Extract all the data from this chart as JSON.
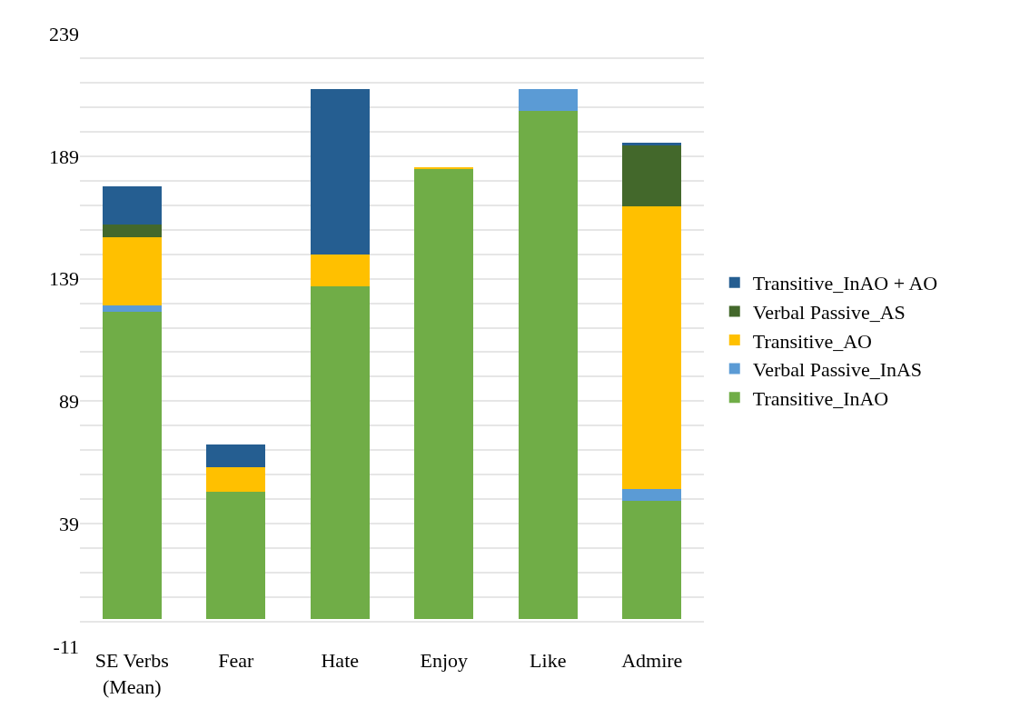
{
  "chart_data": {
    "type": "bar",
    "stacked": true,
    "categories": [
      "SE Verbs (Mean)",
      "Fear",
      "Hate",
      "Enjoy",
      "Like",
      "Admire"
    ],
    "series": [
      {
        "name": "Transitive_InAO",
        "color": "#70ad47",
        "values": [
          125.4,
          52.1,
          135.8,
          183.7,
          207.4,
          48.2
        ]
      },
      {
        "name": "Verbal Passive_InAS",
        "color": "#5b9bd5",
        "values": [
          2.7,
          null,
          null,
          null,
          9.1,
          4.8
        ]
      },
      {
        "name": "Transitive_AO",
        "color": "#ffc000",
        "values": [
          28,
          9.9,
          13,
          0.9,
          null,
          115.7
        ]
      },
      {
        "name": "Verbal Passive_AS",
        "color": "#43682b",
        "values": [
          5.1,
          null,
          null,
          null,
          null,
          24.8
        ]
      },
      {
        "name": "Transitive_InAO + AO",
        "color": "#255e91",
        "values": [
          15.4,
          9.2,
          67.6,
          null,
          null,
          1
        ]
      }
    ],
    "ylim": [
      -11,
      239
    ],
    "yticks": [
      -11,
      {
        "value": -1,
        "label": null
      },
      {
        "value": 9,
        "label": null
      },
      {
        "value": 19,
        "label": null
      },
      {
        "value": 29,
        "label": null
      },
      39,
      {
        "value": 49,
        "label": null
      },
      {
        "value": 59,
        "label": null
      },
      {
        "value": 69,
        "label": null
      },
      {
        "value": 79,
        "label": null
      },
      89,
      {
        "value": 99,
        "label": null
      },
      {
        "value": 109,
        "label": null
      },
      {
        "value": 119,
        "label": null
      },
      {
        "value": 129,
        "label": null
      },
      139,
      {
        "value": 149,
        "label": null
      },
      {
        "value": 159,
        "label": null
      },
      {
        "value": 169,
        "label": null
      },
      {
        "value": 179,
        "label": null
      },
      189,
      {
        "value": 199,
        "label": null
      },
      {
        "value": 209,
        "label": null
      },
      {
        "value": 219,
        "label": null
      },
      {
        "value": 229,
        "label": null
      },
      239
    ],
    "grid": "y",
    "legend": "right"
  }
}
